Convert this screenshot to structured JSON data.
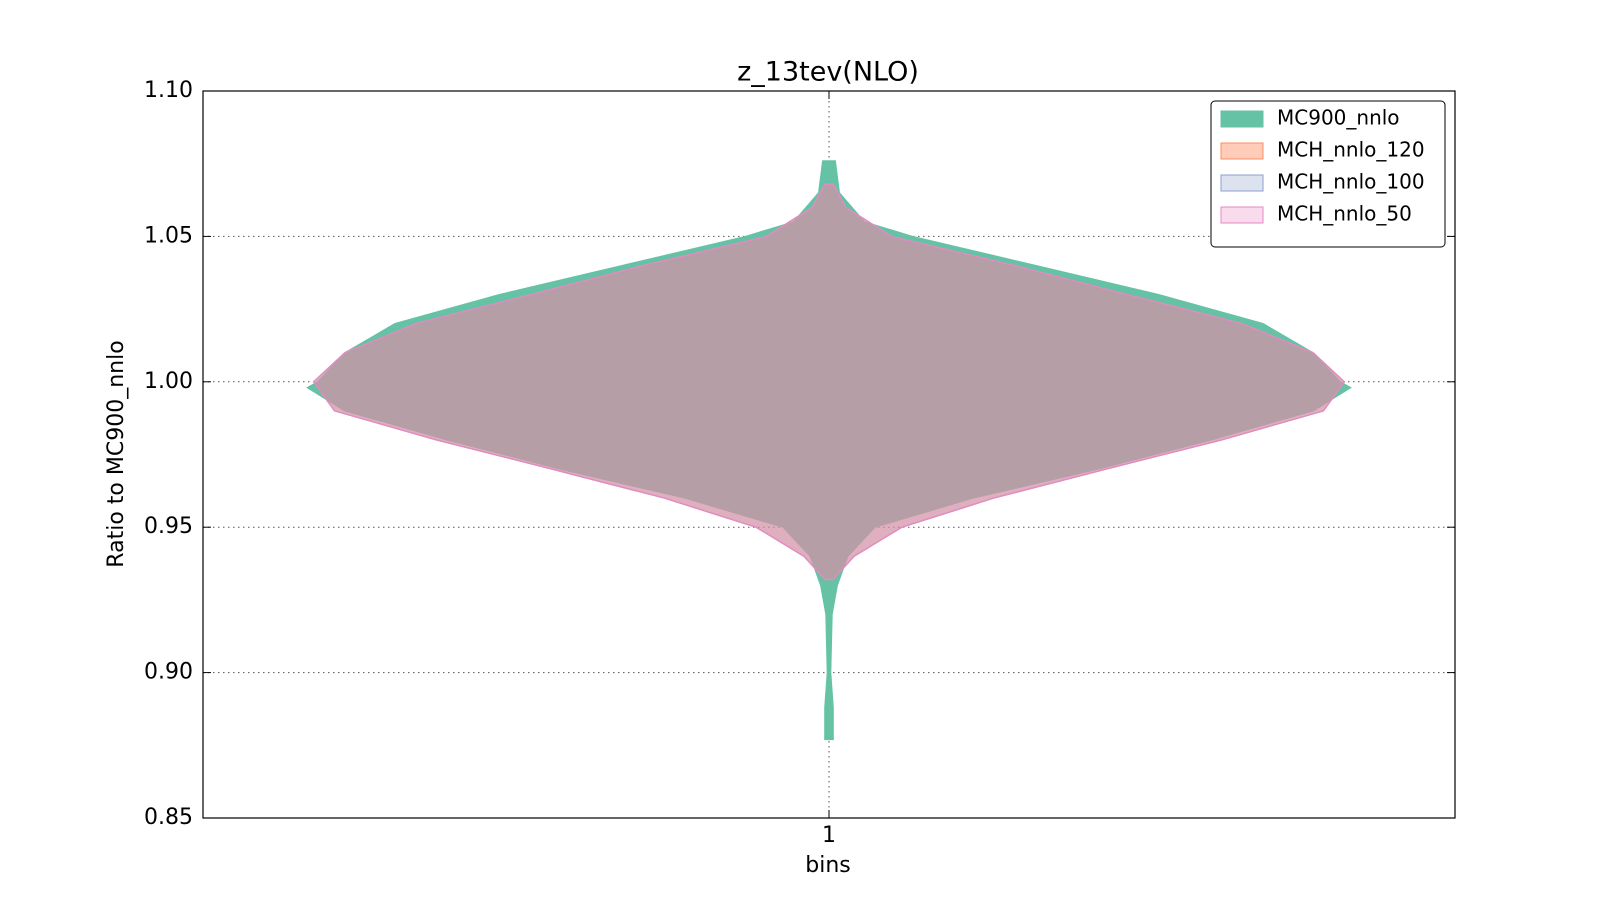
{
  "chart_data": {
    "type": "violin",
    "title": "z_13tev(NLO)",
    "x_label": "bins",
    "y_label": "Ratio to MC900_nnlo",
    "categories": [
      "1"
    ],
    "category_positions": [
      1
    ],
    "xlim": [
      0.7,
      1.3
    ],
    "ylim": [
      0.85,
      1.1
    ],
    "yticks": [
      0.85,
      {
        "value": 0.9,
        "label": "0.90"
      },
      0.95,
      {
        "value": 1.0,
        "label": "1.00"
      },
      1.05,
      {
        "value": 1.1,
        "label": "1.10"
      }
    ],
    "grid": true,
    "legend_loc": "upper right",
    "series": [
      {
        "name": "MC900_nnlo",
        "color": "#66c2a5",
        "alpha": 1.0,
        "y": [
          0.877,
          0.888,
          0.9,
          0.92,
          0.93,
          0.94,
          0.95,
          0.96,
          0.97,
          0.98,
          0.99,
          0.998,
          1.0,
          1.01,
          1.02,
          1.03,
          1.04,
          1.05,
          1.055,
          1.065,
          1.076
        ],
        "width": [
          0.002,
          0.002,
          0.0008,
          0.0015,
          0.004,
          0.009,
          0.022,
          0.069,
          0.129,
          0.183,
          0.232,
          0.25,
          0.245,
          0.232,
          0.208,
          0.158,
          0.099,
          0.04,
          0.017,
          0.005,
          0.003
        ]
      },
      {
        "name": "MCH_nnlo_120",
        "color": "#fc8d62",
        "alpha": 0.45,
        "y": [
          0.932,
          0.94,
          0.95,
          0.96,
          0.97,
          0.98,
          0.99,
          1.0,
          1.01,
          1.02,
          1.03,
          1.04,
          1.05,
          1.06,
          1.068
        ],
        "width": [
          0.002,
          0.012,
          0.035,
          0.079,
          0.133,
          0.188,
          0.237,
          0.247,
          0.232,
          0.198,
          0.143,
          0.089,
          0.03,
          0.008,
          0.002
        ]
      },
      {
        "name": "MCH_nnlo_100",
        "color": "#8da0cb",
        "alpha": 0.3,
        "y": [
          0.932,
          0.94,
          0.95,
          0.96,
          0.97,
          0.98,
          0.99,
          1.0,
          1.01,
          1.02,
          1.03,
          1.04,
          1.05,
          1.06,
          1.068
        ],
        "width": [
          0.002,
          0.012,
          0.035,
          0.079,
          0.133,
          0.188,
          0.237,
          0.247,
          0.232,
          0.198,
          0.143,
          0.089,
          0.03,
          0.008,
          0.002
        ]
      },
      {
        "name": "MCH_nnlo_50",
        "color": "#e78ac3",
        "alpha": 0.3,
        "y": [
          0.932,
          0.94,
          0.95,
          0.96,
          0.97,
          0.98,
          0.99,
          1.0,
          1.01,
          1.02,
          1.03,
          1.04,
          1.05,
          1.06,
          1.068
        ],
        "width": [
          0.002,
          0.012,
          0.035,
          0.079,
          0.133,
          0.188,
          0.237,
          0.247,
          0.232,
          0.198,
          0.143,
          0.089,
          0.03,
          0.008,
          0.002
        ]
      }
    ]
  }
}
